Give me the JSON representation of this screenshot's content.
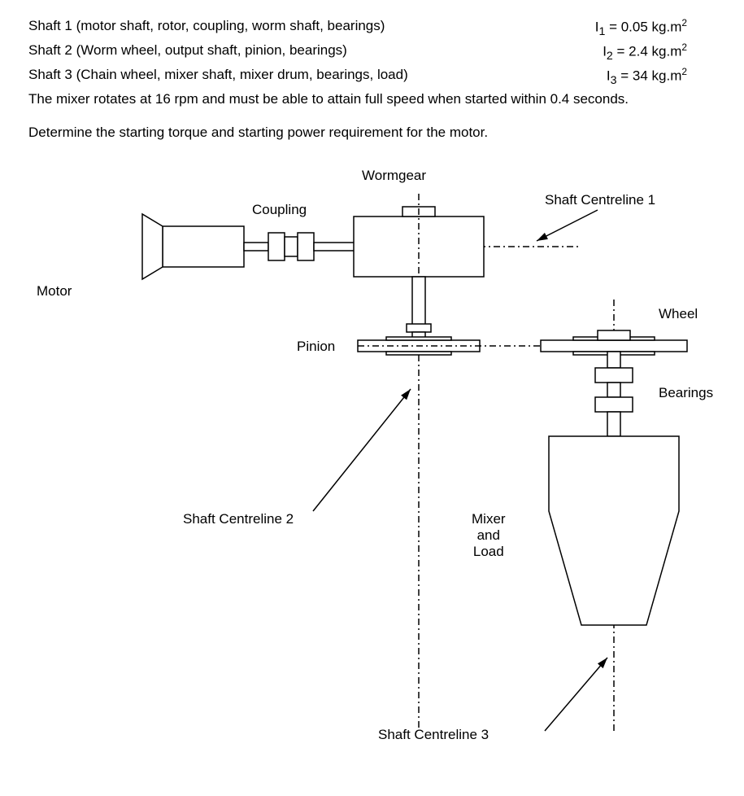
{
  "problem": {
    "shafts": [
      {
        "desc": "Shaft 1 (motor shaft, rotor, coupling, worm shaft, bearings)",
        "sym": "I",
        "sub": "1",
        "val": "0.05",
        "unit_base": "kg.m",
        "unit_sup": "2"
      },
      {
        "desc": "Shaft 2 (Worm wheel, output shaft, pinion, bearings)",
        "sym": "I",
        "sub": "2",
        "val": "2.4",
        "unit_base": "kg.m",
        "unit_sup": "2"
      },
      {
        "desc": "Shaft 3 (Chain wheel, mixer shaft, mixer drum, bearings, load)",
        "sym": "I",
        "sub": "3",
        "val": "34",
        "unit_base": "kg.m",
        "unit_sup": "2"
      }
    ],
    "condition": "The mixer rotates at 16 rpm and must be able to attain full speed when started within 0.4 seconds.",
    "question": "Determine the starting torque and starting power requirement for the motor."
  },
  "diagram": {
    "labels": {
      "wormgear": "Wormgear",
      "coupling": "Coupling",
      "centreline1": "Shaft Centreline 1",
      "motor": "Motor",
      "wheel": "Wheel",
      "pinion": "Pinion",
      "bearings": "Bearings",
      "centreline2": "Shaft Centreline 2",
      "mixerload": "Mixer\nand\nLoad",
      "centreline3": "Shaft Centreline 3"
    },
    "colors": {
      "stroke": "#000000",
      "fill": "#ffffff",
      "bg": "#ffffff"
    },
    "stroke_width": 1.5,
    "dash_pattern": "8 4 2 4"
  }
}
